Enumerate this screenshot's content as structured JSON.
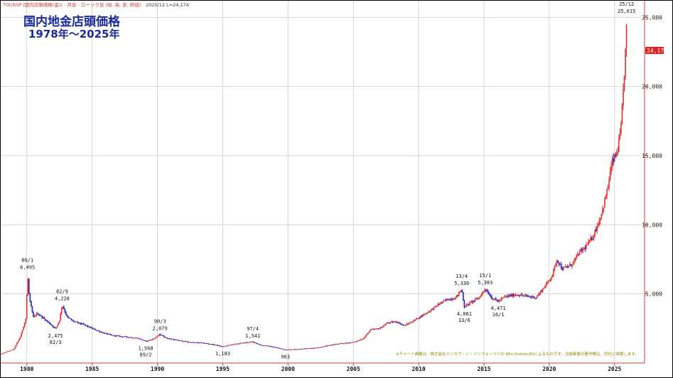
{
  "header": {
    "ticker_line": "TOCRSP (国内店頭価格(金)) - 月足 - ローソク足 (始, 高, 安, 終値)",
    "ticker_price": "2025/12  L=24,174"
  },
  "chart_data": {
    "type": "candlestick",
    "title": "国内地金店頭価格",
    "subtitle": "1978年～2025年",
    "xlabel": "",
    "ylabel": "",
    "xlim": [
      1978,
      2027.3
    ],
    "ylim": [
      0,
      26200
    ],
    "x_ticks": [
      {
        "value": 1980,
        "label": "1980"
      },
      {
        "value": 1985,
        "label": "1985"
      },
      {
        "value": 1990,
        "label": "1990"
      },
      {
        "value": 1995,
        "label": "1995"
      },
      {
        "value": 2000,
        "label": "2000"
      },
      {
        "value": 2005,
        "label": "2005"
      },
      {
        "value": 2010,
        "label": "2010"
      },
      {
        "value": 2015,
        "label": "2015"
      },
      {
        "value": 2020,
        "label": "2020"
      },
      {
        "value": 2025,
        "label": "2025"
      }
    ],
    "y_ticks": [
      {
        "value": 5000,
        "label": "5,000"
      },
      {
        "value": 10000,
        "label": "10,000"
      },
      {
        "value": 15000,
        "label": "15,000"
      },
      {
        "value": 20000,
        "label": "20,000"
      },
      {
        "value": 25000,
        "label": "25,000"
      }
    ],
    "grid": true,
    "series_points": [
      [
        1978.0,
        650
      ],
      [
        1979.0,
        1000
      ],
      [
        1979.5,
        1900
      ],
      [
        1979.95,
        3300
      ],
      [
        1980.05,
        6495
      ],
      [
        1980.2,
        4600
      ],
      [
        1980.5,
        3300
      ],
      [
        1980.8,
        3600
      ],
      [
        1981.2,
        3300
      ],
      [
        1981.7,
        2900
      ],
      [
        1982.2,
        2475
      ],
      [
        1982.5,
        3100
      ],
      [
        1982.7,
        4228
      ],
      [
        1983.1,
        3300
      ],
      [
        1983.6,
        3000
      ],
      [
        1984.3,
        2800
      ],
      [
        1985.0,
        2500
      ],
      [
        1985.8,
        2200
      ],
      [
        1986.5,
        2000
      ],
      [
        1987.5,
        1900
      ],
      [
        1988.5,
        1800
      ],
      [
        1989.1,
        1568
      ],
      [
        1989.7,
        1750
      ],
      [
        1990.2,
        2079
      ],
      [
        1990.7,
        1800
      ],
      [
        1991.5,
        1650
      ],
      [
        1992.5,
        1500
      ],
      [
        1993.5,
        1450
      ],
      [
        1994.5,
        1300
      ],
      [
        1995.0,
        1183
      ],
      [
        1995.5,
        1300
      ],
      [
        1996.3,
        1420
      ],
      [
        1997.3,
        1541
      ],
      [
        1997.9,
        1300
      ],
      [
        1998.7,
        1200
      ],
      [
        1999.4,
        1050
      ],
      [
        1999.8,
        963
      ],
      [
        2000.6,
        1000
      ],
      [
        2001.5,
        1050
      ],
      [
        2002.5,
        1150
      ],
      [
        2003.5,
        1350
      ],
      [
        2004.5,
        1450
      ],
      [
        2005.2,
        1550
      ],
      [
        2005.8,
        1800
      ],
      [
        2006.3,
        2400
      ],
      [
        2007.0,
        2500
      ],
      [
        2007.6,
        2900
      ],
      [
        2008.3,
        3000
      ],
      [
        2008.9,
        2700
      ],
      [
        2009.5,
        3000
      ],
      [
        2010.2,
        3400
      ],
      [
        2010.9,
        3800
      ],
      [
        2011.6,
        4300
      ],
      [
        2012.2,
        4600
      ],
      [
        2012.8,
        4700
      ],
      [
        2013.3,
        5330
      ],
      [
        2013.5,
        4061
      ],
      [
        2014.0,
        4400
      ],
      [
        2014.6,
        4700
      ],
      [
        2015.1,
        5383
      ],
      [
        2015.6,
        4700
      ],
      [
        2016.1,
        4471
      ],
      [
        2016.6,
        4800
      ],
      [
        2017.5,
        4950
      ],
      [
        2018.5,
        4800
      ],
      [
        2019.0,
        4750
      ],
      [
        2019.7,
        5600
      ],
      [
        2020.2,
        6300
      ],
      [
        2020.6,
        7500
      ],
      [
        2021.0,
        6800
      ],
      [
        2021.7,
        7100
      ],
      [
        2022.3,
        8000
      ],
      [
        2022.8,
        8400
      ],
      [
        2023.3,
        9100
      ],
      [
        2023.8,
        10200
      ],
      [
        2024.2,
        11500
      ],
      [
        2024.5,
        12800
      ],
      [
        2024.8,
        14500
      ],
      [
        2025.2,
        15200
      ],
      [
        2025.5,
        17000
      ],
      [
        2025.75,
        21000
      ],
      [
        2025.92,
        24174
      ]
    ],
    "last_value": 24174,
    "annotations": [
      {
        "x": 1980.05,
        "y": 6495,
        "label": "80/1",
        "value_label": "6,495",
        "position": "above"
      },
      {
        "x": 1982.7,
        "y": 4228,
        "label": "82/9",
        "value_label": "4,228",
        "position": "above"
      },
      {
        "x": 1982.2,
        "y": 2475,
        "label": "82/3",
        "value_label": "2,475",
        "position": "below"
      },
      {
        "x": 1989.1,
        "y": 1568,
        "label": "89/2",
        "value_label": "1,568",
        "position": "below"
      },
      {
        "x": 1990.2,
        "y": 2079,
        "label": "90/3",
        "value_label": "2,079",
        "position": "above"
      },
      {
        "x": 1995.0,
        "y": 1183,
        "label": "",
        "value_label": "1,183",
        "position": "below"
      },
      {
        "x": 1997.3,
        "y": 1541,
        "label": "97/4",
        "value_label": "1,541",
        "position": "above"
      },
      {
        "x": 1999.8,
        "y": 963,
        "label": "",
        "value_label": "963",
        "position": "below"
      },
      {
        "x": 2013.3,
        "y": 5330,
        "label": "13/4",
        "value_label": "5,330",
        "position": "above"
      },
      {
        "x": 2013.5,
        "y": 4061,
        "label": "13/6",
        "value_label": "4,061",
        "position": "below"
      },
      {
        "x": 2015.1,
        "y": 5383,
        "label": "15/1",
        "value_label": "5,383",
        "position": "above"
      },
      {
        "x": 2016.1,
        "y": 4471,
        "label": "16/1",
        "value_label": "4,471",
        "position": "below"
      },
      {
        "x": 2025.92,
        "y": 25015,
        "label": "25/12",
        "value_label": "25,015",
        "position": "above"
      }
    ],
    "current_price_label": "24,174",
    "credit": "※チャート画像は、株式会社ミンカブ・ジ・インフォノイドの Win-Station(R)によるものです。当該画像の著作権は、同社に帰属します。",
    "colors": {
      "up": "#e03030",
      "down": "#2222cc",
      "axis": "#d04040",
      "grid": "#d4d4d4",
      "label_bg": "#e02020"
    }
  }
}
